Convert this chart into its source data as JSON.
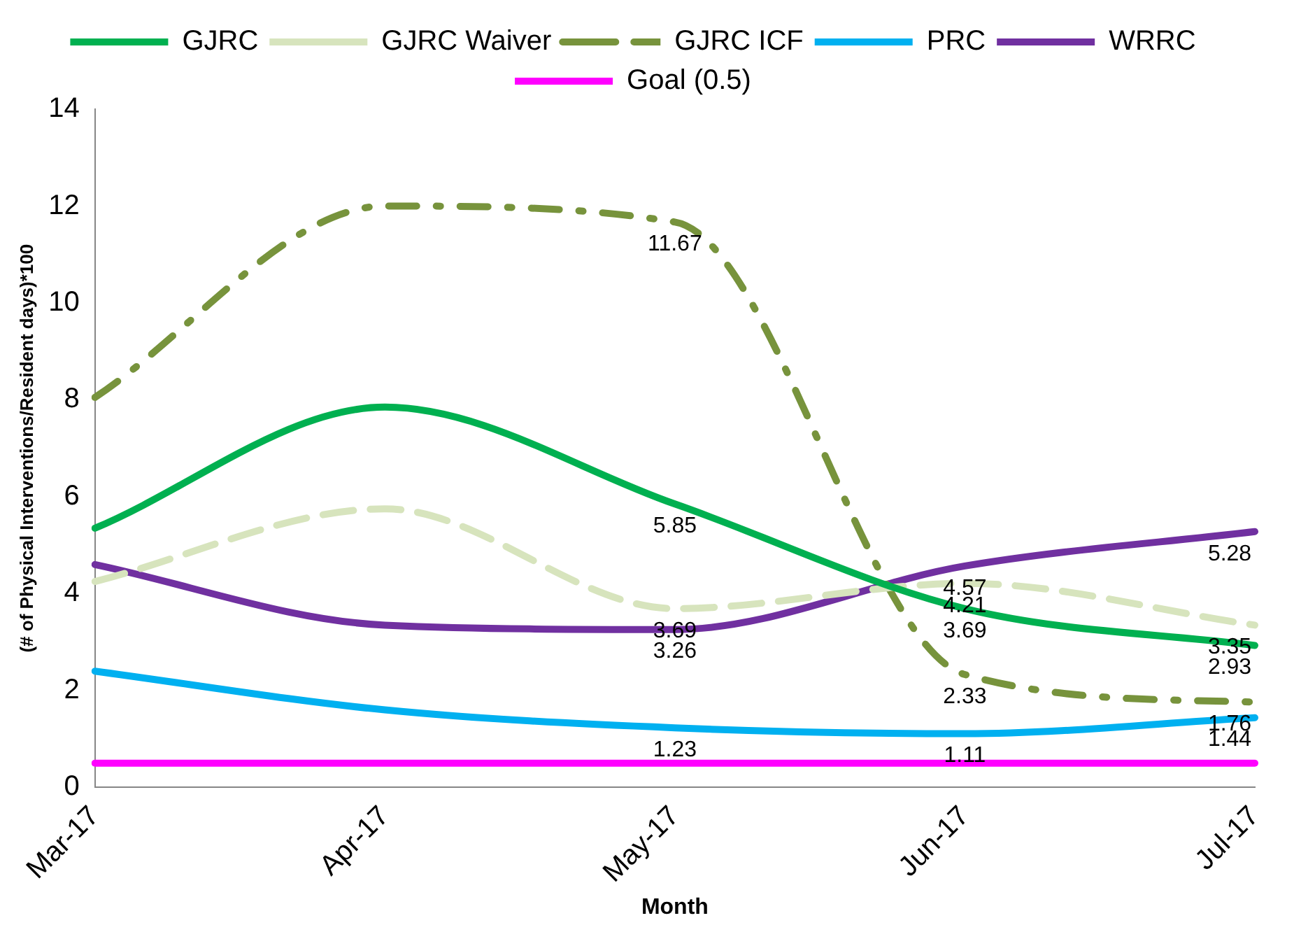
{
  "chart_data": {
    "type": "line",
    "xlabel": "Month",
    "ylabel": "(# of Physical Interventions/Resident days)*100",
    "categories": [
      "Mar-17",
      "Apr-17",
      "May-17",
      "Jun-17",
      "Jul-17"
    ],
    "series": [
      {
        "name": "GJRC",
        "color": "#00b050",
        "line_style": "solid",
        "values": [
          5.35,
          7.85,
          5.85,
          3.69,
          2.93
        ],
        "value_labels": [
          null,
          null,
          "5.85",
          "3.69",
          "2.93"
        ]
      },
      {
        "name": "GJRC Waiver",
        "color": "#d7e4bd",
        "line_style": "dashed",
        "values": [
          4.25,
          5.75,
          3.69,
          4.21,
          3.35
        ],
        "value_labels": [
          null,
          null,
          "3.69",
          "4.21",
          "3.35"
        ]
      },
      {
        "name": "GJRC ICF",
        "color": "#77933c",
        "line_style": "dashdot",
        "values": [
          8.05,
          12.0,
          11.67,
          2.33,
          1.76
        ],
        "value_labels": [
          null,
          null,
          "11.67",
          "2.33",
          "1.76"
        ]
      },
      {
        "name": "PRC",
        "color": "#00b0f0",
        "line_style": "solid",
        "values": [
          2.4,
          1.6,
          1.23,
          1.11,
          1.44
        ],
        "value_labels": [
          null,
          null,
          "1.23",
          "1.11",
          "1.44"
        ]
      },
      {
        "name": "WRRC",
        "color": "#7030a0",
        "line_style": "solid",
        "values": [
          4.6,
          3.35,
          3.26,
          4.57,
          5.28
        ],
        "value_labels": [
          null,
          null,
          "3.26",
          "4.57",
          "5.28"
        ]
      },
      {
        "name": "Goal (0.5)",
        "color": "#ff00ff",
        "line_style": "solid",
        "values": [
          0.5,
          0.5,
          0.5,
          0.5,
          0.5
        ]
      }
    ],
    "ylim": [
      0,
      14
    ],
    "yticks": [
      0,
      2,
      4,
      6,
      8,
      10,
      12,
      14
    ],
    "grid": false,
    "legend": "top",
    "marker": "none"
  }
}
